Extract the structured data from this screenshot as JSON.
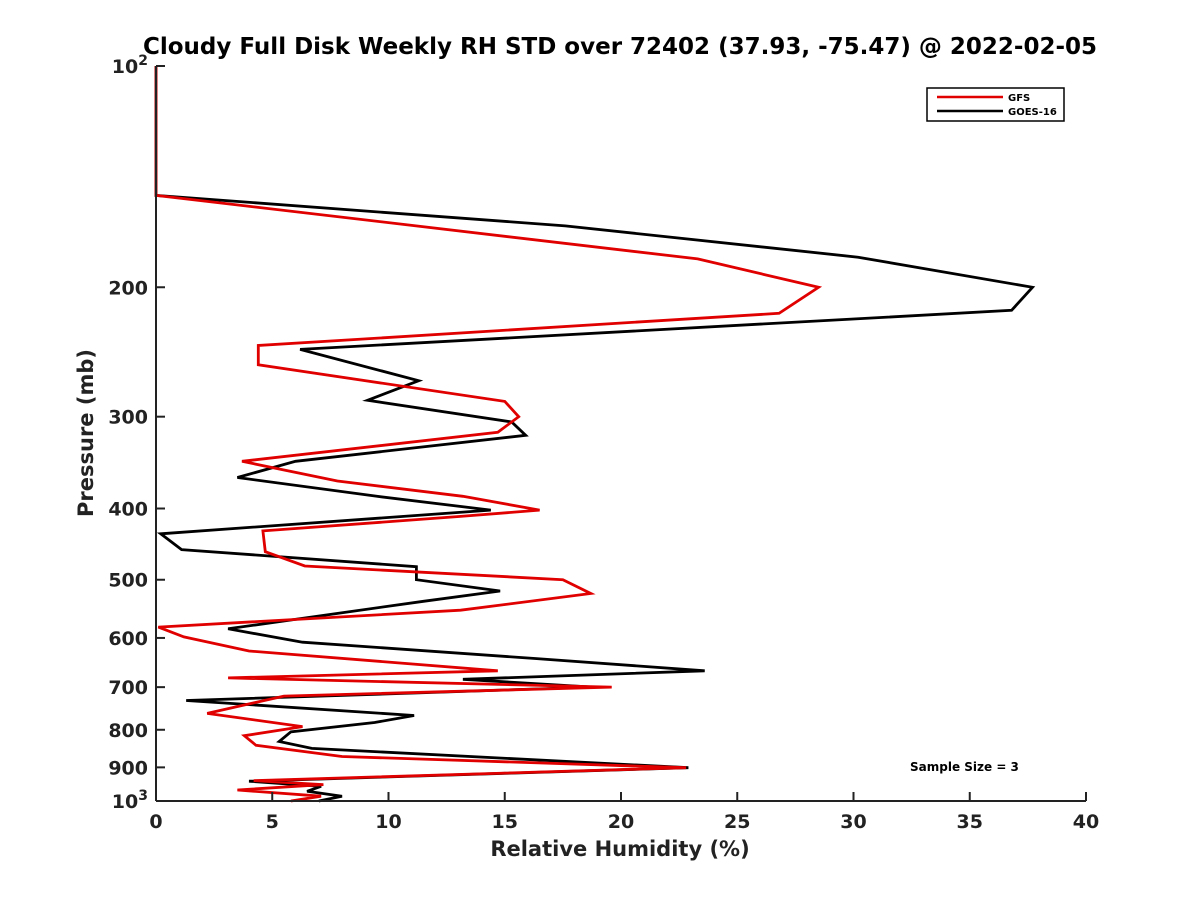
{
  "chart_data": {
    "type": "line",
    "title": "Cloudy Full Disk Weekly RH STD over 72402 (37.93, -75.47) @ 2022-02-05",
    "xlabel": "Relative Humidity (%)",
    "ylabel": "Pressure (mb)",
    "xlim": [
      0,
      40
    ],
    "ylim": [
      100,
      1000
    ],
    "y_scale": "log",
    "y_reversed": true,
    "grid": false,
    "legend_position": "top-right",
    "annotation": "Sample Size = 3",
    "x_ticks": [
      "0",
      "5",
      "10",
      "15",
      "20",
      "25",
      "30",
      "35",
      "40"
    ],
    "x_tick_values": [
      0,
      5,
      10,
      15,
      20,
      25,
      30,
      35,
      40
    ],
    "y_ticks": [
      {
        "value": 100,
        "base": "10",
        "exp": "2"
      },
      {
        "value": 200,
        "label": "200"
      },
      {
        "value": 300,
        "label": "300"
      },
      {
        "value": 400,
        "label": "400"
      },
      {
        "value": 500,
        "label": "500"
      },
      {
        "value": 600,
        "label": "600"
      },
      {
        "value": 700,
        "label": "700"
      },
      {
        "value": 800,
        "label": "800"
      },
      {
        "value": 900,
        "label": "900"
      },
      {
        "value": 1000,
        "base": "10",
        "exp": "3"
      }
    ],
    "series": [
      {
        "name": "GFS",
        "color": "#e00000",
        "points": [
          [
            0,
            100
          ],
          [
            0,
            150
          ],
          [
            23.3,
            183
          ],
          [
            28.5,
            200
          ],
          [
            26.8,
            217
          ],
          [
            4.4,
            240
          ],
          [
            4.4,
            255
          ],
          [
            15,
            286
          ],
          [
            15.6,
            300
          ],
          [
            14.7,
            315
          ],
          [
            3.7,
            345
          ],
          [
            7.8,
            367
          ],
          [
            13.2,
            385
          ],
          [
            16.5,
            402
          ],
          [
            13.1,
            410
          ],
          [
            4.6,
            429
          ],
          [
            4.7,
            458
          ],
          [
            6.4,
            479
          ],
          [
            17.5,
            500
          ],
          [
            18.7,
            522
          ],
          [
            13.1,
            550
          ],
          [
            0.1,
            580
          ],
          [
            1.2,
            598
          ],
          [
            4,
            625
          ],
          [
            14.7,
            665
          ],
          [
            3.1,
            680
          ],
          [
            19.6,
            700
          ],
          [
            5.5,
            720
          ],
          [
            2.2,
            760
          ],
          [
            6.3,
            792
          ],
          [
            3.8,
            815
          ],
          [
            4.3,
            840
          ],
          [
            8,
            870
          ],
          [
            22.8,
            901
          ],
          [
            4.2,
            938
          ],
          [
            7.2,
            950
          ],
          [
            3.5,
            966
          ],
          [
            7.1,
            985
          ],
          [
            5.8,
            1000
          ]
        ]
      },
      {
        "name": "GOES-16",
        "color": "#000000",
        "points": [
          [
            0,
            100
          ],
          [
            0,
            150
          ],
          [
            17.6,
            165
          ],
          [
            30.2,
            182
          ],
          [
            37.7,
            200
          ],
          [
            36.8,
            215
          ],
          [
            6.2,
            243
          ],
          [
            11.3,
            268
          ],
          [
            9.1,
            285
          ],
          [
            15.3,
            305
          ],
          [
            15.9,
            318
          ],
          [
            6,
            345
          ],
          [
            3.5,
            363
          ],
          [
            9.5,
            385
          ],
          [
            14.4,
            402
          ],
          [
            0.2,
            433
          ],
          [
            1.1,
            455
          ],
          [
            11.2,
            480
          ],
          [
            11.2,
            500
          ],
          [
            14.8,
            518
          ],
          [
            11.5,
            535
          ],
          [
            3.1,
            583
          ],
          [
            6.3,
            608
          ],
          [
            16.3,
            640
          ],
          [
            23.6,
            665
          ],
          [
            13.2,
            683
          ],
          [
            18.8,
            700
          ],
          [
            1.3,
            730
          ],
          [
            11.1,
            765
          ],
          [
            9.4,
            782
          ],
          [
            5.8,
            805
          ],
          [
            5.3,
            830
          ],
          [
            6.7,
            848
          ],
          [
            22.9,
            901
          ],
          [
            4,
            940
          ],
          [
            7.1,
            955
          ],
          [
            6.5,
            970
          ],
          [
            8,
            985
          ],
          [
            7,
            1000
          ]
        ]
      }
    ]
  }
}
